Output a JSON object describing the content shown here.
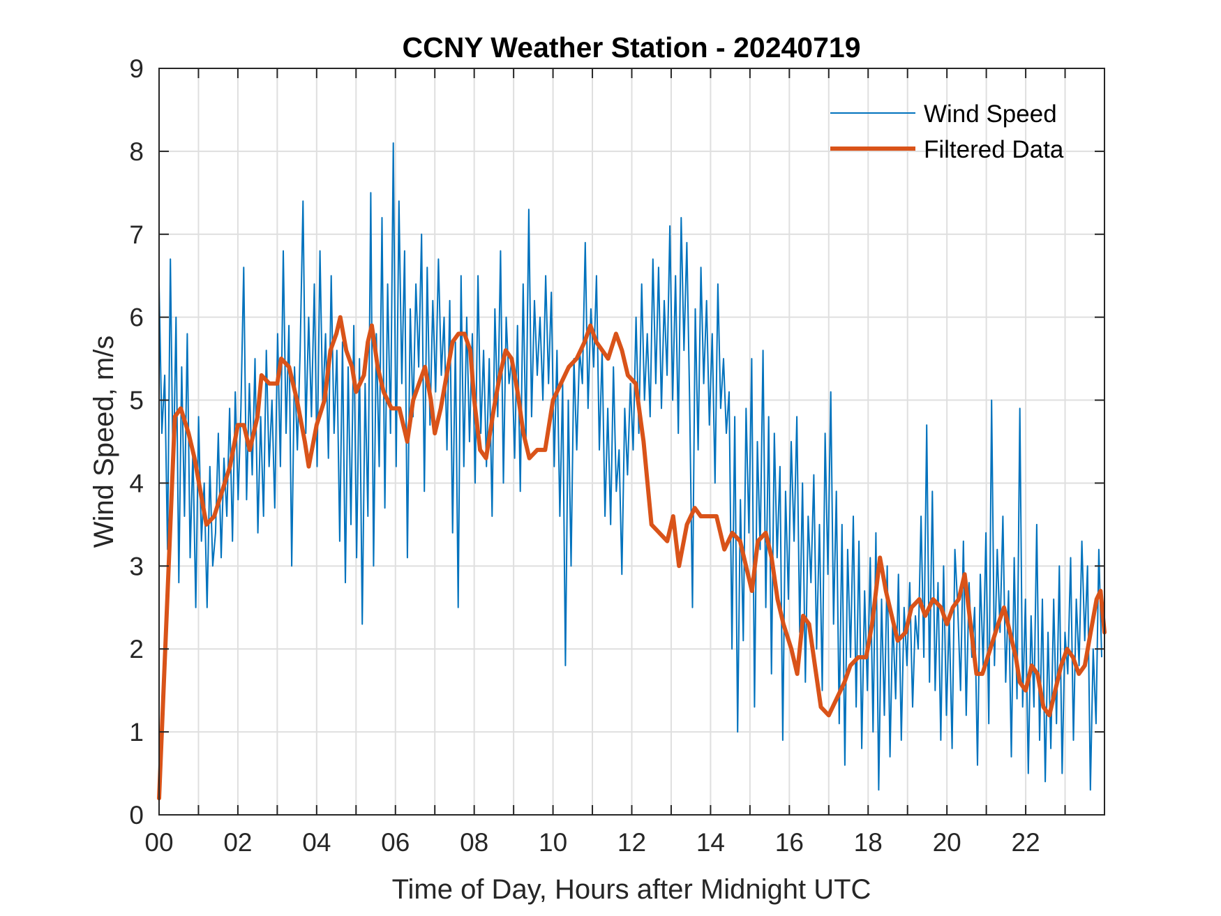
{
  "chart_data": {
    "type": "line",
    "title": "CCNY Weather Station - 20240719",
    "xlabel": "Time of Day, Hours after Midnight UTC",
    "ylabel": "Wind Speed, m/s",
    "xlim": [
      0,
      24
    ],
    "ylim": [
      0,
      9
    ],
    "xticks": [
      0,
      2,
      4,
      6,
      8,
      10,
      12,
      14,
      16,
      18,
      20,
      22
    ],
    "xtick_labels": [
      "00",
      "02",
      "04",
      "06",
      "08",
      "10",
      "12",
      "14",
      "16",
      "18",
      "20",
      "22"
    ],
    "xminor_ticks": [
      1,
      3,
      5,
      7,
      9,
      11,
      13,
      15,
      17,
      19,
      21,
      23
    ],
    "yticks": [
      0,
      1,
      2,
      3,
      4,
      5,
      6,
      7,
      8,
      9
    ],
    "ytick_labels": [
      "0",
      "1",
      "2",
      "3",
      "4",
      "5",
      "6",
      "7",
      "8",
      "9"
    ],
    "grid": true,
    "legend": {
      "position": "top-right",
      "entries": [
        "Wind Speed",
        "Filtered Data"
      ]
    },
    "colors": {
      "wind_speed": "#0072BD",
      "filtered": "#D95319"
    },
    "series": [
      {
        "name": "Wind Speed",
        "x_start": 0,
        "x_step": 0.05,
        "values": [
          6.4,
          4.6,
          5.3,
          3.2,
          6.7,
          4.0,
          6.0,
          2.8,
          5.4,
          3.6,
          5.8,
          3.1,
          4.4,
          2.5,
          4.8,
          3.3,
          4.0,
          2.5,
          4.2,
          3.0,
          3.4,
          4.6,
          3.1,
          4.3,
          3.6,
          4.9,
          3.3,
          5.1,
          3.8,
          4.9,
          6.6,
          3.8,
          5.2,
          4.1,
          5.5,
          3.4,
          4.8,
          3.6,
          5.6,
          4.2,
          5.0,
          3.7,
          5.8,
          4.2,
          6.8,
          4.6,
          5.9,
          3.0,
          5.4,
          4.4,
          5.6,
          7.4,
          4.6,
          6.0,
          4.8,
          6.4,
          4.2,
          6.8,
          4.9,
          5.8,
          4.3,
          6.5,
          4.6,
          5.6,
          3.3,
          5.7,
          2.8,
          5.4,
          3.5,
          5.9,
          3.1,
          5.5,
          2.3,
          5.2,
          3.6,
          7.5,
          3.0,
          5.8,
          4.2,
          7.2,
          3.7,
          6.4,
          4.6,
          8.1,
          4.2,
          7.4,
          5.2,
          6.8,
          3.1,
          6.1,
          4.8,
          6.4,
          5.4,
          7.0,
          3.9,
          6.6,
          4.7,
          6.2,
          5.1,
          6.7,
          5.3,
          6.0,
          4.4,
          6.2,
          3.4,
          5.7,
          2.5,
          6.5,
          4.2,
          6.0,
          4.5,
          5.8,
          4.0,
          6.5,
          4.6,
          5.6,
          4.2,
          5.5,
          3.6,
          6.1,
          4.8,
          6.8,
          4.0,
          6.0,
          5.2,
          5.5,
          4.3,
          5.9,
          3.9,
          6.4,
          4.5,
          7.3,
          4.8,
          6.2,
          5.3,
          6.0,
          5.0,
          6.5,
          5.2,
          6.3,
          4.2,
          5.6,
          3.6,
          5.2,
          1.8,
          5.0,
          3.0,
          5.5,
          4.4,
          5.6,
          5.2,
          6.9,
          4.9,
          6.1,
          5.4,
          6.5,
          4.4,
          5.6,
          3.6,
          4.9,
          3.5,
          5.4,
          3.9,
          4.4,
          2.9,
          4.9,
          4.1,
          5.2,
          4.4,
          6.0,
          4.6,
          6.4,
          5.0,
          5.8,
          4.8,
          6.7,
          5.2,
          6.6,
          4.9,
          6.2,
          5.3,
          7.1,
          5.0,
          6.5,
          4.6,
          7.2,
          5.6,
          6.9,
          5.0,
          2.5,
          6.1,
          4.4,
          6.6,
          5.2,
          6.2,
          4.7,
          5.8,
          4.0,
          6.4,
          4.9,
          5.5,
          4.6,
          5.1,
          2.0,
          4.8,
          1.0,
          3.8,
          2.1,
          4.9,
          3.4,
          5.5,
          1.3,
          4.5,
          3.2,
          5.6,
          2.5,
          4.8,
          1.7,
          4.6,
          3.1,
          4.2,
          0.9,
          3.9,
          2.6,
          4.5,
          3.3,
          4.8,
          2.2,
          4.0,
          1.6,
          3.6,
          2.8,
          4.1,
          2.0,
          3.5,
          1.5,
          4.6,
          2.9,
          5.1,
          2.3,
          3.9,
          1.1,
          3.5,
          0.6,
          3.2,
          1.9,
          3.6,
          1.3,
          3.3,
          0.8,
          2.7,
          1.5,
          3.1,
          1.0,
          3.4,
          0.3,
          2.6,
          1.2,
          3.0,
          0.7,
          2.4,
          1.4,
          2.9,
          0.9,
          2.5,
          1.8,
          2.8,
          1.3,
          2.4,
          2.0,
          3.6,
          1.9,
          4.7,
          1.6,
          3.9,
          1.5,
          2.8,
          0.9,
          3.0,
          1.2,
          2.4,
          0.8,
          3.2,
          2.5,
          1.5,
          3.3,
          1.2,
          2.8,
          1.9,
          2.5,
          0.6,
          2.9,
          1.8,
          3.4,
          1.1,
          5.0,
          1.8,
          3.2,
          2.2,
          3.6,
          1.6,
          2.7,
          0.7,
          3.1,
          1.4,
          4.9,
          1.3,
          2.6,
          0.5,
          2.4,
          1.3,
          3.5,
          0.9,
          2.6,
          0.4,
          2.2,
          0.8,
          2.6,
          1.1,
          3.0,
          0.5,
          2.2,
          1.7,
          3.1,
          0.9,
          2.6,
          1.8,
          3.3,
          2.1,
          3.0,
          0.3,
          2.0,
          1.1,
          3.2,
          1.9
        ]
      },
      {
        "name": "Filtered Data",
        "x": [
          0.0,
          0.2,
          0.4,
          0.55,
          0.75,
          0.9,
          1.05,
          1.2,
          1.4,
          1.6,
          1.8,
          2.0,
          2.15,
          2.3,
          2.5,
          2.6,
          2.8,
          3.0,
          3.1,
          3.3,
          3.5,
          3.7,
          3.8,
          4.0,
          4.2,
          4.35,
          4.5,
          4.6,
          4.75,
          4.9,
          5.0,
          5.2,
          5.3,
          5.4,
          5.55,
          5.7,
          5.9,
          6.1,
          6.3,
          6.45,
          6.6,
          6.75,
          6.9,
          7.0,
          7.15,
          7.3,
          7.45,
          7.6,
          7.75,
          7.9,
          8.0,
          8.15,
          8.3,
          8.5,
          8.65,
          8.8,
          8.95,
          9.1,
          9.25,
          9.4,
          9.6,
          9.8,
          10.0,
          10.2,
          10.4,
          10.6,
          10.8,
          10.95,
          11.1,
          11.25,
          11.4,
          11.6,
          11.75,
          11.9,
          12.1,
          12.3,
          12.5,
          12.7,
          12.9,
          13.05,
          13.2,
          13.4,
          13.6,
          13.75,
          13.95,
          14.15,
          14.35,
          14.55,
          14.75,
          14.9,
          15.05,
          15.2,
          15.4,
          15.55,
          15.7,
          15.85,
          16.05,
          16.2,
          16.35,
          16.5,
          16.65,
          16.8,
          17.0,
          17.2,
          17.4,
          17.55,
          17.75,
          17.95,
          18.1,
          18.3,
          18.45,
          18.6,
          18.75,
          18.95,
          19.1,
          19.3,
          19.45,
          19.65,
          19.85,
          20.0,
          20.15,
          20.3,
          20.45,
          20.6,
          20.75,
          20.9,
          21.1,
          21.3,
          21.45,
          21.6,
          21.75,
          21.85,
          22.0,
          22.15,
          22.3,
          22.45,
          22.6,
          22.75,
          22.9,
          23.05,
          23.2,
          23.35,
          23.5,
          23.65,
          23.8,
          23.9,
          24.0
        ],
        "values": [
          0.2,
          2.5,
          4.8,
          4.9,
          4.6,
          4.3,
          3.9,
          3.5,
          3.6,
          3.9,
          4.2,
          4.7,
          4.7,
          4.4,
          4.8,
          5.3,
          5.2,
          5.2,
          5.5,
          5.4,
          5.0,
          4.5,
          4.2,
          4.7,
          5.0,
          5.6,
          5.8,
          6.0,
          5.6,
          5.4,
          5.1,
          5.3,
          5.7,
          5.9,
          5.4,
          5.1,
          4.9,
          4.9,
          4.5,
          5.0,
          5.2,
          5.4,
          5.0,
          4.6,
          4.9,
          5.3,
          5.7,
          5.8,
          5.8,
          5.6,
          5.0,
          4.4,
          4.3,
          4.9,
          5.3,
          5.6,
          5.5,
          5.1,
          4.6,
          4.3,
          4.4,
          4.4,
          5.0,
          5.2,
          5.4,
          5.5,
          5.7,
          5.9,
          5.7,
          5.6,
          5.5,
          5.8,
          5.6,
          5.3,
          5.2,
          4.5,
          3.5,
          3.4,
          3.3,
          3.6,
          3.0,
          3.5,
          3.7,
          3.6,
          3.6,
          3.6,
          3.2,
          3.4,
          3.3,
          3.0,
          2.7,
          3.3,
          3.4,
          3.1,
          2.6,
          2.3,
          2.0,
          1.7,
          2.4,
          2.3,
          1.8,
          1.3,
          1.2,
          1.4,
          1.6,
          1.8,
          1.9,
          1.9,
          2.3,
          3.1,
          2.7,
          2.4,
          2.1,
          2.2,
          2.5,
          2.6,
          2.4,
          2.6,
          2.5,
          2.3,
          2.5,
          2.6,
          2.9,
          2.3,
          1.7,
          1.7,
          2.0,
          2.3,
          2.5,
          2.2,
          1.9,
          1.6,
          1.5,
          1.8,
          1.7,
          1.3,
          1.2,
          1.5,
          1.8,
          2.0,
          1.9,
          1.7,
          1.8,
          2.2,
          2.6,
          2.7,
          2.2
        ]
      }
    ]
  }
}
